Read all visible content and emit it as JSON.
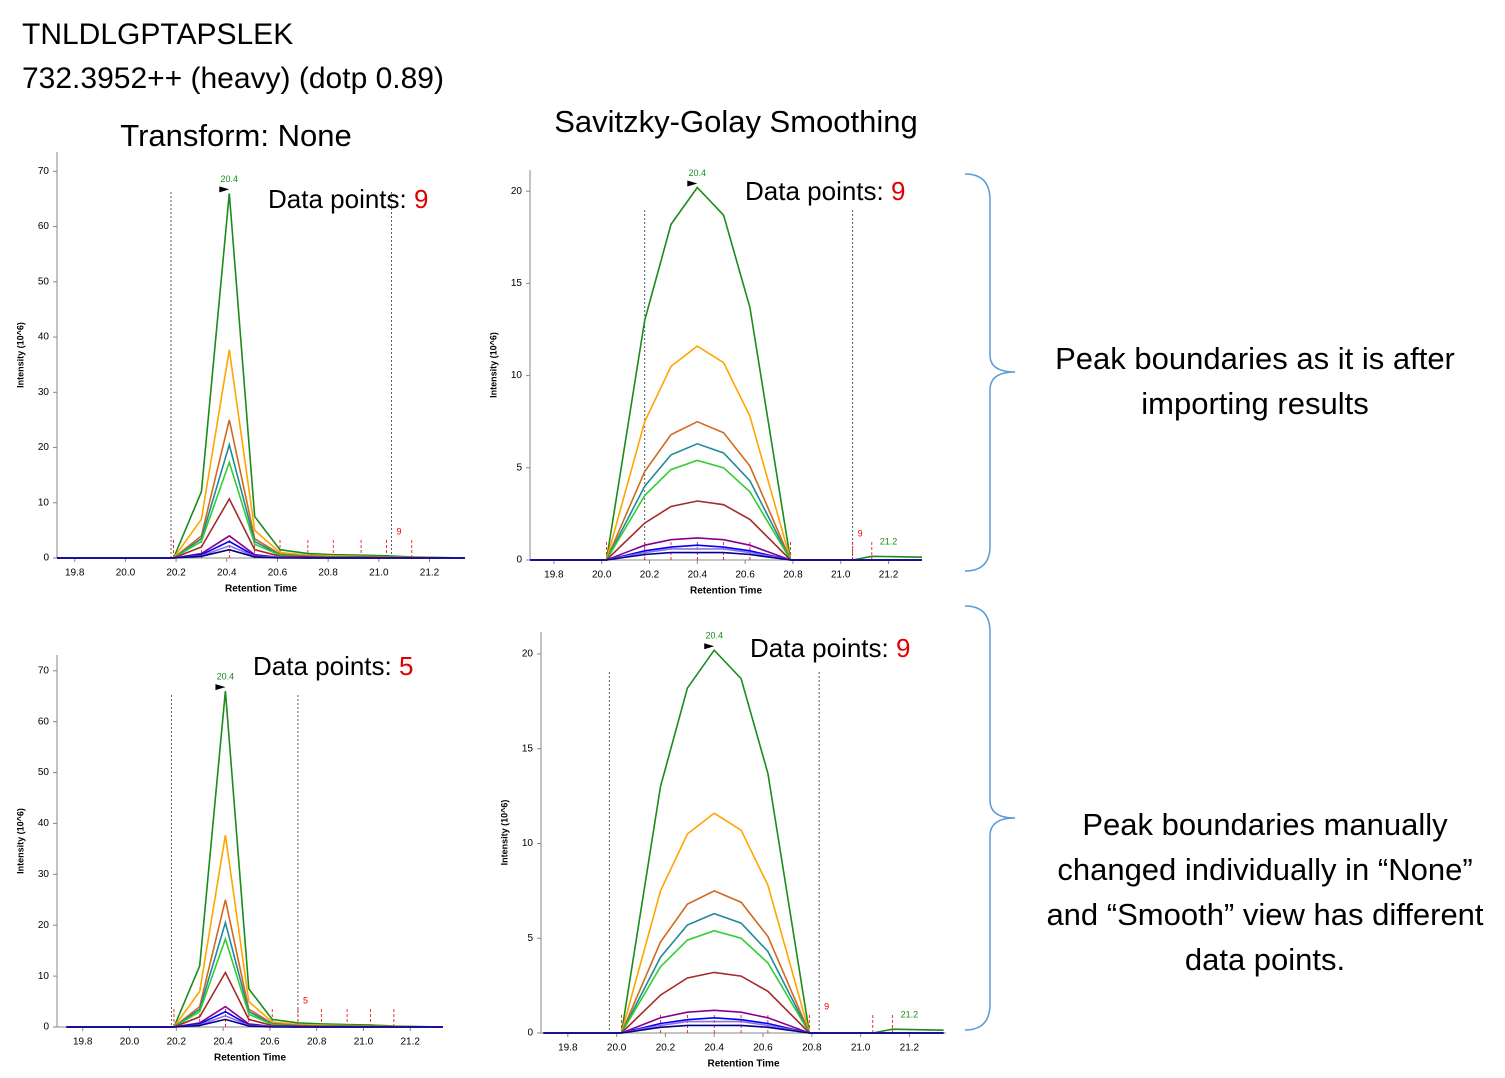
{
  "header": {
    "peptide": "TNLDLGPTAPSLEK",
    "precursor": "732.3952++ (heavy) (dotp 0.89)"
  },
  "notes": [
    "Peak boundaries as it is after importing results",
    "Peak boundaries manually changed individually in “None” and “Smooth” view has different data points."
  ],
  "chart_data": [
    {
      "type": "line",
      "title": "Transform: None",
      "x_label": "Retention Time",
      "y_label": "Intensity (10^6)",
      "xlim": [
        19.73,
        21.34
      ],
      "ylim": [
        0,
        73.5
      ],
      "xticks": [
        19.8,
        {
          "value": 20,
          "label": "20.0"
        },
        20.2,
        20.4,
        20.6,
        20.8,
        {
          "value": 21,
          "label": "21.0"
        },
        21.2
      ],
      "yticks": [
        0,
        10,
        20,
        30,
        40,
        50,
        60,
        70
      ],
      "x": [
        19.73,
        20.19,
        20.3,
        20.41,
        20.51,
        20.61,
        20.72,
        20.82,
        20.93,
        21.03,
        21.13,
        21.34
      ],
      "series": [
        {
          "color": "#1a8c1a",
          "values": [
            0,
            0,
            12,
            66,
            7.5,
            1.5,
            0.8,
            0.6,
            0.5,
            0.4,
            0.2,
            0
          ]
        },
        {
          "color": "#ffa500",
          "values": [
            0,
            0,
            7,
            37.7,
            5,
            1,
            0.5,
            0.4,
            0.3,
            0.2,
            0.1,
            0
          ]
        },
        {
          "color": "#d2691e",
          "values": [
            0,
            0,
            4,
            25,
            3.5,
            0.7,
            0.3,
            0.2,
            0.2,
            0.1,
            0.1,
            0
          ]
        },
        {
          "color": "#1e8a9c",
          "values": [
            0,
            0,
            3.5,
            20.5,
            3,
            0.6,
            0.3,
            0.2,
            0.2,
            0.1,
            0,
            0
          ]
        },
        {
          "color": "#32cd32",
          "values": [
            0,
            0,
            3,
            17.3,
            2.5,
            0.5,
            0.2,
            0.2,
            0.1,
            0.1,
            0,
            0
          ]
        },
        {
          "color": "#a52a2a",
          "values": [
            0,
            0,
            2,
            10.7,
            1.5,
            0.3,
            0.2,
            0.1,
            0.1,
            0.1,
            0,
            0
          ]
        },
        {
          "color": "#8b008b",
          "values": [
            0,
            0,
            0.8,
            4,
            0.6,
            0.1,
            0.1,
            0,
            0,
            0,
            0,
            0
          ]
        },
        {
          "color": "#0000ff",
          "values": [
            0,
            0,
            0.6,
            3,
            0.4,
            0.1,
            0,
            0,
            0,
            0,
            0,
            0
          ]
        },
        {
          "color": "#9370db",
          "values": [
            0,
            0,
            0.4,
            2.2,
            0.3,
            0.1,
            0,
            0,
            0,
            0,
            0,
            0
          ]
        },
        {
          "color": "#00008b",
          "values": [
            0,
            0,
            0.3,
            1.5,
            0.2,
            0,
            0,
            0,
            0,
            0,
            0,
            0
          ]
        }
      ],
      "boundaries": [
        20.18,
        21.05
      ],
      "boundary_label": 9,
      "annotations": [
        {
          "text": "20.4",
          "x": 20.41,
          "y": 66
        }
      ],
      "data_points": {
        "label": "Data points:",
        "count": 9
      }
    },
    {
      "type": "line",
      "title": "Savitzky-Golay Smoothing",
      "x_label": "Retention Time",
      "y_label": "Intensity (10^6)",
      "xlim": [
        19.7,
        21.34
      ],
      "ylim": [
        0,
        21.15
      ],
      "xticks": [
        19.8,
        {
          "value": 20,
          "label": "20.0"
        },
        20.2,
        20.4,
        20.6,
        20.8,
        {
          "value": 21,
          "label": "21.0"
        },
        21.2
      ],
      "yticks": [
        0,
        5,
        10,
        15,
        20
      ],
      "x": [
        19.7,
        20.02,
        20.18,
        20.29,
        20.4,
        20.51,
        20.62,
        20.79,
        21.05,
        21.13,
        21.34
      ],
      "series": [
        {
          "color": "#1a8c1a",
          "values": [
            0,
            0,
            13,
            18.2,
            20.2,
            18.7,
            13.7,
            0,
            0,
            0.2,
            0.15
          ]
        },
        {
          "color": "#ffa500",
          "values": [
            0,
            0,
            7.5,
            10.5,
            11.6,
            10.7,
            7.8,
            0,
            0,
            0,
            0
          ]
        },
        {
          "color": "#d2691e",
          "values": [
            0,
            0,
            4.8,
            6.8,
            7.5,
            6.9,
            5.1,
            0,
            0,
            0,
            0
          ]
        },
        {
          "color": "#1e8a9c",
          "values": [
            0,
            0,
            4,
            5.7,
            6.3,
            5.8,
            4.3,
            0,
            0,
            0,
            0
          ]
        },
        {
          "color": "#32cd32",
          "values": [
            0,
            0,
            3.5,
            4.9,
            5.4,
            5,
            3.7,
            0,
            0,
            0,
            0
          ]
        },
        {
          "color": "#a52a2a",
          "values": [
            0,
            0,
            2,
            2.9,
            3.2,
            3,
            2.2,
            0,
            0,
            0,
            0
          ]
        },
        {
          "color": "#8b008b",
          "values": [
            0,
            0,
            0.8,
            1.1,
            1.2,
            1.1,
            0.8,
            0,
            0,
            0,
            0
          ]
        },
        {
          "color": "#0000ff",
          "values": [
            0,
            0,
            0.5,
            0.7,
            0.8,
            0.7,
            0.5,
            0,
            0,
            0,
            0
          ]
        },
        {
          "color": "#9370db",
          "values": [
            0,
            0,
            0.4,
            0.6,
            0.6,
            0.6,
            0.4,
            0,
            0,
            0,
            0
          ]
        },
        {
          "color": "#00008b",
          "values": [
            0,
            0,
            0.3,
            0.4,
            0.4,
            0.4,
            0.3,
            0,
            0,
            0,
            0
          ]
        }
      ],
      "boundaries": [
        20.18,
        21.05
      ],
      "boundary_label": 9,
      "annotations": [
        {
          "text": "20.4",
          "x": 20.4,
          "y": 20.2
        },
        {
          "text": "21.2",
          "x": 21.2,
          "y": 0.2
        }
      ],
      "data_points": {
        "label": "Data points:",
        "count": 9
      }
    },
    {
      "type": "line",
      "x_label": "Retention Time",
      "y_label": "Intensity (10^6)",
      "xlim": [
        19.69,
        21.34
      ],
      "ylim": [
        0,
        73.1
      ],
      "xticks": [
        19.8,
        {
          "value": 20,
          "label": "20.0"
        },
        20.2,
        20.4,
        20.6,
        20.8,
        {
          "value": 21,
          "label": "21.0"
        },
        21.2
      ],
      "yticks": [
        0,
        10,
        20,
        30,
        40,
        50,
        60,
        70
      ],
      "x": [
        19.73,
        20.19,
        20.3,
        20.41,
        20.51,
        20.61,
        20.72,
        20.82,
        20.93,
        21.03,
        21.13,
        21.34
      ],
      "series": [
        {
          "color": "#1a8c1a",
          "values": [
            0,
            0,
            12,
            66,
            7.5,
            1.5,
            0.8,
            0.6,
            0.5,
            0.4,
            0.2,
            0
          ]
        },
        {
          "color": "#ffa500",
          "values": [
            0,
            0,
            7,
            37.7,
            5,
            1,
            0.5,
            0.4,
            0.3,
            0.2,
            0.1,
            0
          ]
        },
        {
          "color": "#d2691e",
          "values": [
            0,
            0,
            4,
            25,
            3.5,
            0.7,
            0.3,
            0.2,
            0.2,
            0.1,
            0.1,
            0
          ]
        },
        {
          "color": "#1e8a9c",
          "values": [
            0,
            0,
            3.5,
            20.5,
            3,
            0.6,
            0.3,
            0.2,
            0.2,
            0.1,
            0,
            0
          ]
        },
        {
          "color": "#32cd32",
          "values": [
            0,
            0,
            3,
            17.3,
            2.5,
            0.5,
            0.2,
            0.2,
            0.1,
            0.1,
            0,
            0
          ]
        },
        {
          "color": "#a52a2a",
          "values": [
            0,
            0,
            2,
            10.7,
            1.5,
            0.3,
            0.2,
            0.1,
            0.1,
            0.1,
            0,
            0
          ]
        },
        {
          "color": "#8b008b",
          "values": [
            0,
            0,
            0.8,
            4,
            0.6,
            0.1,
            0.1,
            0,
            0,
            0,
            0,
            0
          ]
        },
        {
          "color": "#0000ff",
          "values": [
            0,
            0,
            0.6,
            3,
            0.4,
            0.1,
            0,
            0,
            0,
            0,
            0,
            0
          ]
        },
        {
          "color": "#9370db",
          "values": [
            0,
            0,
            0.4,
            2.2,
            0.3,
            0.1,
            0,
            0,
            0,
            0,
            0,
            0
          ]
        },
        {
          "color": "#00008b",
          "values": [
            0,
            0,
            0.3,
            1.5,
            0.2,
            0,
            0,
            0,
            0,
            0,
            0,
            0
          ]
        }
      ],
      "boundaries": [
        20.18,
        20.72
      ],
      "boundary_label": 5,
      "annotations": [
        {
          "text": "20.4",
          "x": 20.41,
          "y": 66
        }
      ],
      "data_points": {
        "label": "Data points:",
        "count": 5
      }
    },
    {
      "type": "line",
      "x_label": "Retention Time",
      "y_label": "Intensity (10^6)",
      "xlim": [
        19.69,
        21.35
      ],
      "ylim": [
        0,
        21.16
      ],
      "xticks": [
        19.8,
        {
          "value": 20,
          "label": "20.0"
        },
        20.2,
        20.4,
        20.6,
        20.8,
        {
          "value": 21,
          "label": "21.0"
        },
        21.2
      ],
      "yticks": [
        0,
        5,
        10,
        15,
        20
      ],
      "x": [
        19.7,
        20.02,
        20.18,
        20.29,
        20.4,
        20.51,
        20.62,
        20.79,
        21.05,
        21.13,
        21.34
      ],
      "series": [
        {
          "color": "#1a8c1a",
          "values": [
            0,
            0,
            13,
            18.2,
            20.2,
            18.7,
            13.7,
            0,
            0,
            0.2,
            0.15
          ]
        },
        {
          "color": "#ffa500",
          "values": [
            0,
            0,
            7.5,
            10.5,
            11.6,
            10.7,
            7.8,
            0,
            0,
            0,
            0
          ]
        },
        {
          "color": "#d2691e",
          "values": [
            0,
            0,
            4.8,
            6.8,
            7.5,
            6.9,
            5.1,
            0,
            0,
            0,
            0
          ]
        },
        {
          "color": "#1e8a9c",
          "values": [
            0,
            0,
            4,
            5.7,
            6.3,
            5.8,
            4.3,
            0,
            0,
            0,
            0
          ]
        },
        {
          "color": "#32cd32",
          "values": [
            0,
            0,
            3.5,
            4.9,
            5.4,
            5,
            3.7,
            0,
            0,
            0,
            0
          ]
        },
        {
          "color": "#a52a2a",
          "values": [
            0,
            0,
            2,
            2.9,
            3.2,
            3,
            2.2,
            0,
            0,
            0,
            0
          ]
        },
        {
          "color": "#8b008b",
          "values": [
            0,
            0,
            0.8,
            1.1,
            1.2,
            1.1,
            0.8,
            0,
            0,
            0,
            0
          ]
        },
        {
          "color": "#0000ff",
          "values": [
            0,
            0,
            0.5,
            0.7,
            0.8,
            0.7,
            0.5,
            0,
            0,
            0,
            0
          ]
        },
        {
          "color": "#9370db",
          "values": [
            0,
            0,
            0.4,
            0.6,
            0.6,
            0.6,
            0.4,
            0,
            0,
            0,
            0
          ]
        },
        {
          "color": "#00008b",
          "values": [
            0,
            0,
            0.3,
            0.4,
            0.4,
            0.4,
            0.3,
            0,
            0,
            0,
            0
          ]
        }
      ],
      "boundaries": [
        19.97,
        20.83
      ],
      "boundary_label": 9,
      "annotations": [
        {
          "text": "20.4",
          "x": 20.4,
          "y": 20.2
        },
        {
          "text": "21.2",
          "x": 21.2,
          "y": 0.2
        }
      ],
      "data_points": {
        "label": "Data points:",
        "count": 9
      }
    }
  ]
}
